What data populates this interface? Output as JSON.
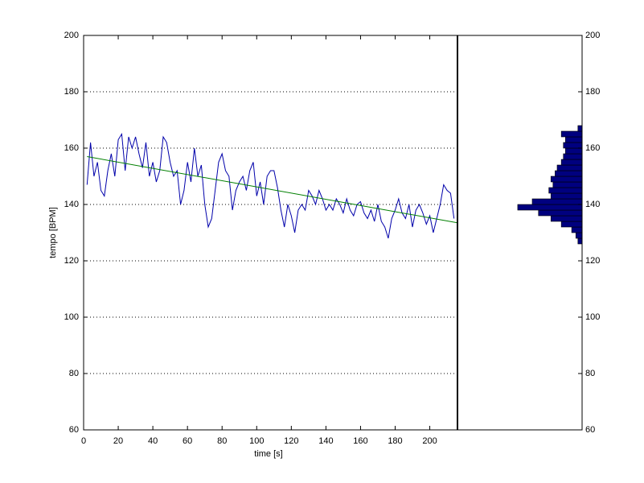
{
  "chart_data": [
    {
      "type": "line",
      "xlabel": "time [s]",
      "ylabel": "tempo [BPM]",
      "xlim": [
        0,
        216
      ],
      "ylim": [
        60,
        200
      ],
      "xticks": [
        0,
        20,
        40,
        60,
        80,
        100,
        120,
        140,
        160,
        180,
        200
      ],
      "yticks": [
        60,
        80,
        100,
        120,
        140,
        160,
        180,
        200
      ],
      "grid": "y",
      "series": [
        {
          "color": "#0000aa",
          "x": [
            2,
            4,
            6,
            8,
            10,
            12,
            14,
            16,
            18,
            20,
            22,
            24,
            26,
            28,
            30,
            32,
            34,
            36,
            38,
            40,
            42,
            44,
            46,
            48,
            50,
            52,
            54,
            56,
            58,
            60,
            62,
            64,
            66,
            68,
            70,
            72,
            74,
            76,
            78,
            80,
            82,
            84,
            86,
            88,
            90,
            92,
            94,
            96,
            98,
            100,
            102,
            104,
            106,
            108,
            110,
            112,
            114,
            116,
            118,
            120,
            122,
            124,
            126,
            128,
            130,
            132,
            134,
            136,
            138,
            140,
            142,
            144,
            146,
            148,
            150,
            152,
            154,
            156,
            158,
            160,
            162,
            164,
            166,
            168,
            170,
            172,
            174,
            176,
            178,
            180,
            182,
            184,
            186,
            188,
            190,
            192,
            194,
            196,
            198,
            200,
            202,
            204,
            206,
            208,
            210,
            212,
            214
          ],
          "values": [
            147,
            162,
            150,
            155,
            145,
            143,
            152,
            158,
            150,
            163,
            165,
            152,
            164,
            160,
            164,
            158,
            153,
            162,
            150,
            155,
            148,
            152,
            164,
            162,
            155,
            150,
            152,
            140,
            145,
            155,
            148,
            160,
            150,
            154,
            140,
            132,
            135,
            145,
            155,
            158,
            152,
            150,
            138,
            145,
            148,
            150,
            145,
            152,
            155,
            143,
            148,
            140,
            150,
            152,
            152,
            146,
            138,
            132,
            140,
            136,
            130,
            138,
            140,
            138,
            145,
            143,
            140,
            145,
            142,
            138,
            140,
            138,
            142,
            140,
            137,
            142,
            138,
            136,
            140,
            141,
            137,
            135,
            138,
            134,
            140,
            134,
            132,
            128,
            135,
            138,
            142,
            137,
            135,
            140,
            132,
            138,
            140,
            137,
            133,
            136,
            130,
            135,
            140,
            147,
            145,
            144,
            135
          ]
        },
        {
          "color": "#007f00",
          "x": [
            2,
            216
          ],
          "values": [
            157,
            133.5
          ]
        }
      ]
    },
    {
      "type": "histogram",
      "orientation": "horizontal",
      "color": "#00007f",
      "ylim": [
        60,
        200
      ],
      "yticks": [
        60,
        80,
        100,
        120,
        140,
        160,
        180,
        200
      ],
      "xlim": [
        0,
        60
      ],
      "x_reversed": true,
      "bins": [
        126,
        128,
        130,
        132,
        134,
        136,
        138,
        140,
        142,
        144,
        146,
        148,
        150,
        152,
        154,
        156,
        158,
        160,
        162,
        164,
        166,
        168
      ],
      "values": [
        2,
        3,
        5,
        10,
        15,
        21,
        31,
        24,
        15,
        16,
        14,
        15,
        13,
        12,
        10,
        9,
        8,
        9,
        8,
        10,
        2
      ]
    }
  ]
}
